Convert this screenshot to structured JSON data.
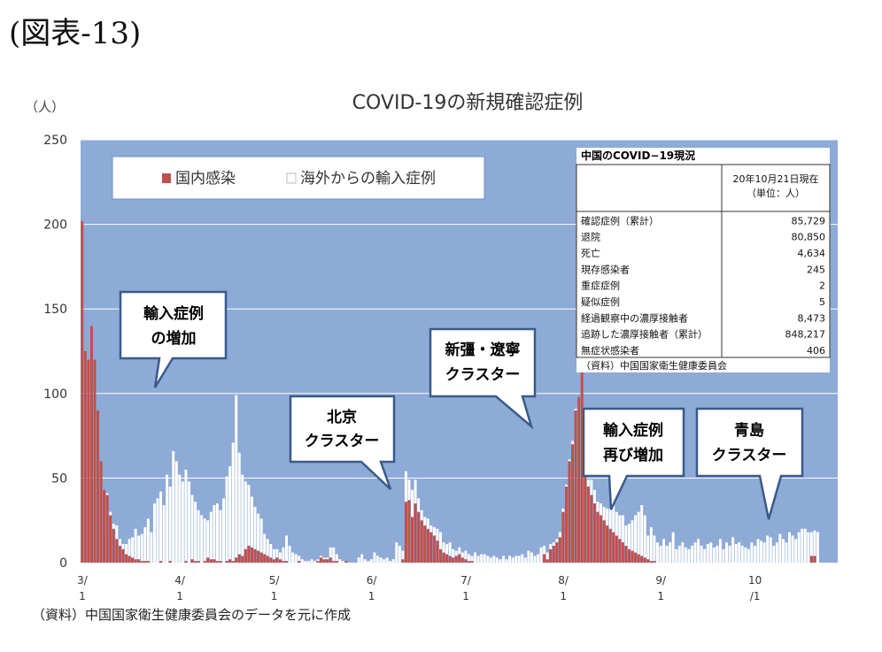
{
  "figure_label": "(図表-13)",
  "y_unit": "（人）",
  "source": "（資料）中国国家衛生健康委員会のデータを元に作成",
  "chart_data": {
    "type": "bar",
    "stacked": true,
    "title": "COVID-19の新規確認症例",
    "xlabel": "",
    "ylabel": "（人）",
    "ylim": [
      0,
      250
    ],
    "yticks": [
      0,
      50,
      100,
      150,
      200,
      250
    ],
    "xticks": [
      {
        "line1": "3/",
        "line2": "1",
        "day": 0
      },
      {
        "line1": "4/",
        "line2": "1",
        "day": 31
      },
      {
        "line1": "5/",
        "line2": "1",
        "day": 61
      },
      {
        "line1": "6/",
        "line2": "1",
        "day": 92
      },
      {
        "line1": "7/",
        "line2": "1",
        "day": 122
      },
      {
        "line1": "8/",
        "line2": "1",
        "day": 153
      },
      {
        "line1": "9/",
        "line2": "1",
        "day": 184
      },
      {
        "line1": "10",
        "line2": "/1",
        "day": 214
      }
    ],
    "n_days": 235,
    "grid": true,
    "legend_position": "top-left",
    "series": [
      {
        "name": "国内感染",
        "color": "#c0504d",
        "values": [
          202,
          125,
          120,
          140,
          120,
          90,
          60,
          43,
          40,
          28,
          20,
          14,
          10,
          8,
          5,
          4,
          3,
          2,
          2,
          1,
          1,
          1,
          0,
          0,
          0,
          1,
          0,
          0,
          1,
          0,
          0,
          0,
          0,
          1,
          0,
          2,
          1,
          1,
          0,
          1,
          3,
          2,
          2,
          1,
          1,
          0,
          1,
          2,
          1,
          3,
          5,
          4,
          8,
          10,
          9,
          8,
          7,
          6,
          5,
          4,
          3,
          2,
          3,
          2,
          1,
          1,
          0,
          0,
          0,
          1,
          0,
          0,
          0,
          0,
          0,
          1,
          3,
          2,
          2,
          3,
          1,
          1,
          0,
          0,
          1,
          0,
          0,
          0,
          0,
          0,
          0,
          0,
          0,
          0,
          0,
          0,
          0,
          0,
          0,
          0,
          0,
          0,
          2,
          36,
          37,
          27,
          35,
          30,
          25,
          22,
          20,
          18,
          16,
          13,
          8,
          6,
          5,
          4,
          3,
          4,
          5,
          3,
          2,
          1,
          1,
          0,
          0,
          0,
          0,
          0,
          0,
          0,
          0,
          0,
          0,
          0,
          0,
          0,
          0,
          0,
          0,
          0,
          0,
          0,
          0,
          0,
          0,
          5,
          2,
          8,
          10,
          12,
          15,
          30,
          45,
          60,
          70,
          90,
          98,
          122,
          60,
          45,
          40,
          35,
          30,
          28,
          25,
          22,
          20,
          18,
          16,
          14,
          12,
          10,
          8,
          7,
          6,
          5,
          4,
          3,
          2,
          1,
          1,
          0,
          0,
          0,
          0,
          0,
          0,
          0,
          0,
          0,
          0,
          0,
          0,
          0,
          0,
          0,
          0,
          0,
          0,
          0,
          0,
          0,
          0,
          0,
          0,
          0,
          0,
          0,
          0,
          0,
          0,
          0,
          0,
          0,
          0,
          0,
          0,
          0,
          0,
          0,
          0,
          0,
          0,
          0,
          0,
          0,
          0,
          0,
          0,
          0,
          4,
          4,
          0,
          0,
          0,
          0,
          0,
          0,
          0,
          0,
          0,
          0
        ]
      },
      {
        "name": "海外からの輸入症例",
        "color": "#ffffff",
        "values": [
          0,
          0,
          0,
          0,
          0,
          0,
          0,
          0,
          1,
          2,
          3,
          8,
          4,
          3,
          6,
          10,
          12,
          18,
          14,
          16,
          20,
          25,
          18,
          35,
          38,
          41,
          34,
          52,
          44,
          66,
          60,
          52,
          48,
          54,
          48,
          38,
          35,
          30,
          28,
          25,
          22,
          28,
          32,
          34,
          30,
          38,
          50,
          55,
          70,
          96,
          60,
          48,
          40,
          36,
          30,
          25,
          22,
          20,
          12,
          10,
          8,
          6,
          5,
          4,
          8,
          15,
          10,
          6,
          5,
          3,
          2,
          1,
          1,
          2,
          1,
          1,
          1,
          1,
          1,
          6,
          8,
          4,
          2,
          1,
          0,
          0,
          0,
          0,
          3,
          5,
          2,
          1,
          2,
          6,
          4,
          3,
          2,
          3,
          1,
          2,
          12,
          10,
          5,
          18,
          12,
          16,
          14,
          8,
          6,
          5,
          6,
          4,
          5,
          7,
          10,
          6,
          6,
          8,
          5,
          3,
          4,
          3,
          5,
          4,
          3,
          6,
          4,
          5,
          5,
          4,
          3,
          4,
          3,
          2,
          4,
          2,
          4,
          3,
          4,
          4,
          5,
          3,
          7,
          6,
          4,
          5,
          9,
          5,
          4,
          3,
          2,
          2,
          3,
          2,
          1,
          1,
          2,
          1,
          0,
          0,
          5,
          4,
          9,
          8,
          6,
          7,
          8,
          10,
          12,
          16,
          14,
          14,
          16,
          12,
          15,
          18,
          22,
          25,
          30,
          25,
          14,
          20,
          15,
          12,
          10,
          14,
          10,
          12,
          18,
          8,
          10,
          12,
          9,
          8,
          10,
          12,
          14,
          10,
          8,
          11,
          12,
          9,
          10,
          14,
          8,
          12,
          10,
          15,
          11,
          12,
          10,
          9,
          8,
          12,
          10,
          14,
          13,
          12,
          16,
          15,
          10,
          12,
          17,
          14,
          12,
          18,
          16,
          14,
          18,
          20,
          20,
          18,
          14,
          15,
          18,
          14,
          12,
          16,
          14,
          12,
          16,
          10,
          8,
          12,
          14,
          0,
          0
        ]
      }
    ],
    "inset_table": {
      "title": "中国のCOVID−19現況",
      "date_header": "20年10月21日現在",
      "unit_header": "（単位：人）",
      "rows": [
        {
          "label": "確認症例（累計）",
          "value": "85,729"
        },
        {
          "label": "退院",
          "value": "80,850"
        },
        {
          "label": "死亡",
          "value": "4,634"
        },
        {
          "label": "現存感染者",
          "value": "245"
        },
        {
          "label": "重症症例",
          "value": "2"
        },
        {
          "label": "疑似症例",
          "value": "5"
        },
        {
          "label": "経過観察中の濃厚接触者",
          "value": "8,473"
        },
        {
          "label": "追跡した濃厚接触者（累計）",
          "value": "848,217"
        },
        {
          "label": "無症状感染者",
          "value": "406"
        }
      ],
      "source": "（資料）中国国家衛生健康委員会"
    },
    "callouts": [
      {
        "id": "import-increase",
        "lines": [
          "輸入症例",
          "の増加"
        ]
      },
      {
        "id": "beijing-cluster",
        "lines": [
          "北京",
          "クラスター"
        ]
      },
      {
        "id": "xinjiang-liaoning-cluster",
        "lines": [
          "新彊・遼寧",
          "クラスター"
        ]
      },
      {
        "id": "import-increase-again",
        "lines": [
          "輸入症例",
          "再び増加"
        ]
      },
      {
        "id": "qingdao-cluster",
        "lines": [
          "青島",
          "クラスター"
        ]
      }
    ]
  }
}
